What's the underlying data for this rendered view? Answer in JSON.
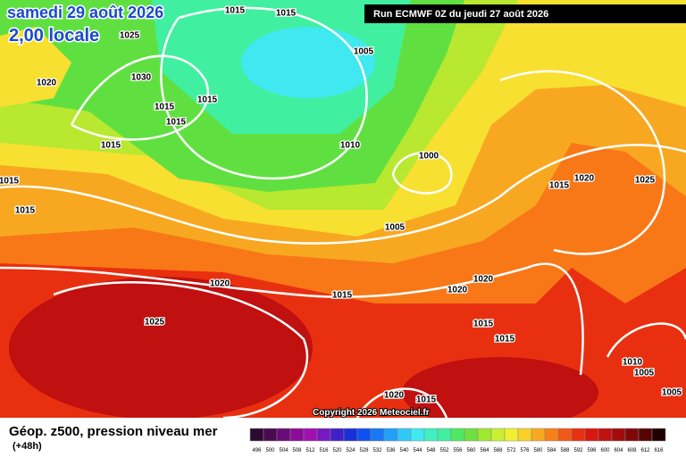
{
  "header": {
    "date": "samedi 29 août 2026",
    "time": "2,00 locale",
    "run": "Run ECMWF 0Z du jeudi 27 août 2026"
  },
  "footer": {
    "title": "Géop. z500, pression niveau mer",
    "lead": "(+48h)",
    "copyright": "Copyright 2026 Meteociel.fr"
  },
  "legend": {
    "labels": [
      496,
      500,
      504,
      508,
      512,
      516,
      520,
      524,
      528,
      532,
      536,
      540,
      544,
      548,
      552,
      556,
      560,
      564,
      568,
      572,
      576,
      580,
      584,
      588,
      592,
      596,
      600,
      604,
      608,
      612,
      616
    ],
    "colors": [
      "#2a0a30",
      "#4a0a50",
      "#6a0a78",
      "#8c0c98",
      "#a010b0",
      "#7818c0",
      "#4020c8",
      "#1830d8",
      "#1050f0",
      "#1878f8",
      "#20a0f8",
      "#30c8f8",
      "#40e8f0",
      "#40f0c0",
      "#40f0a0",
      "#50e860",
      "#70e040",
      "#a0e830",
      "#c8f030",
      "#f0f030",
      "#f8d028",
      "#f8a820",
      "#f88018",
      "#f05818",
      "#e83010",
      "#d81810",
      "#c01010",
      "#a00c0c",
      "#800808",
      "#580404",
      "#200000"
    ]
  },
  "isobar_labels": [
    "1015",
    "1015",
    "1025",
    "1005",
    "1030",
    "1020",
    "1015",
    "1015",
    "1015",
    "1015",
    "1010",
    "1000",
    "1020",
    "1025",
    "1015",
    "1015",
    "1015",
    "1005",
    "1020",
    "1015",
    "1020",
    "1020",
    "1025",
    "1015",
    "1015",
    "1010",
    "1005",
    "1020",
    "1015",
    "1005"
  ]
}
